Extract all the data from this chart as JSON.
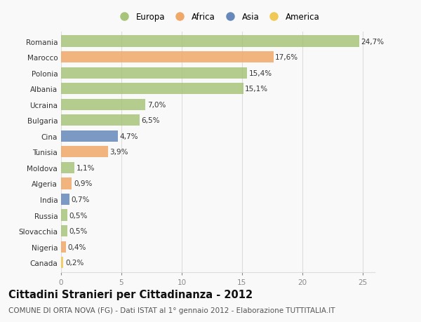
{
  "countries": [
    "Romania",
    "Marocco",
    "Polonia",
    "Albania",
    "Ucraina",
    "Bulgaria",
    "Cina",
    "Tunisia",
    "Moldova",
    "Algeria",
    "India",
    "Russia",
    "Slovacchia",
    "Nigeria",
    "Canada"
  ],
  "values": [
    24.7,
    17.6,
    15.4,
    15.1,
    7.0,
    6.5,
    4.7,
    3.9,
    1.1,
    0.9,
    0.7,
    0.5,
    0.5,
    0.4,
    0.2
  ],
  "labels": [
    "24,7%",
    "17,6%",
    "15,4%",
    "15,1%",
    "7,0%",
    "6,5%",
    "4,7%",
    "3,9%",
    "1,1%",
    "0,9%",
    "0,7%",
    "0,5%",
    "0,5%",
    "0,4%",
    "0,2%"
  ],
  "continents": [
    "Europa",
    "Africa",
    "Europa",
    "Europa",
    "Europa",
    "Europa",
    "Asia",
    "Africa",
    "Europa",
    "Africa",
    "Asia",
    "Europa",
    "Europa",
    "Africa",
    "America"
  ],
  "continent_colors": {
    "Europa": "#a8c47a",
    "Africa": "#f0a868",
    "Asia": "#6688bb",
    "America": "#f0c855"
  },
  "legend_order": [
    "Europa",
    "Africa",
    "Asia",
    "America"
  ],
  "title": "Cittadini Stranieri per Cittadinanza - 2012",
  "subtitle": "COMUNE DI ORTA NOVA (FG) - Dati ISTAT al 1° gennaio 2012 - Elaborazione TUTTITALIA.IT",
  "xlim": [
    0,
    26
  ],
  "xticks": [
    0,
    5,
    10,
    15,
    20,
    25
  ],
  "background_color": "#f9f9f9",
  "grid_color": "#dddddd",
  "bar_height": 0.72,
  "label_fontsize": 7.5,
  "tick_fontsize": 7.5,
  "title_fontsize": 10.5,
  "subtitle_fontsize": 7.5
}
